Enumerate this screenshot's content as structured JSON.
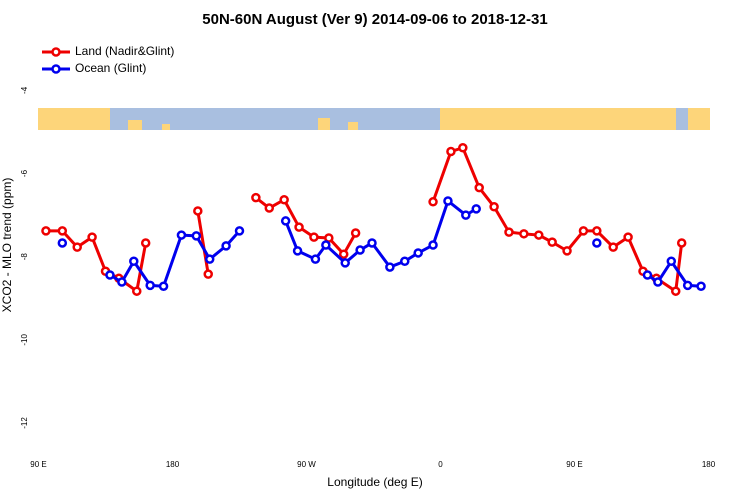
{
  "chart_data": {
    "type": "line",
    "title": "50N-60N August (Ver 9)   2014-09-06 to 2018-12-31",
    "x_label": "Longitude (deg E)",
    "y_label": "XCO2 - MLO trend (ppm)",
    "xlim": [
      -270,
      180
    ],
    "xticks": [
      {
        "value": -270,
        "label": "90 E"
      },
      -180,
      {
        "value": -180,
        "label": "180"
      },
      {
        "value": -90,
        "label": "90 W"
      },
      0,
      {
        "value": 90,
        "label": "90 E"
      },
      180
    ],
    "ylim": [
      -12.77,
      -2.74
    ],
    "yticks": [
      -4,
      -6,
      -8,
      -10,
      -12
    ],
    "grid": false,
    "legend": "top-left",
    "series": [
      {
        "name": "Land (Nadir&Glint)",
        "color": "#ee0000",
        "x": [
          -265,
          -254,
          -244,
          -234,
          -225,
          -216,
          -204,
          -198,
          -187,
          -163,
          -156,
          -144,
          -124,
          -115,
          -105,
          -95,
          -85,
          -75,
          -65,
          -57,
          -34,
          -5,
          7,
          15,
          26,
          36,
          46,
          56,
          66,
          75,
          85,
          96,
          105,
          116,
          126,
          136,
          145,
          158,
          162
        ],
        "values": [
          -7.38,
          -7.38,
          -7.77,
          -7.53,
          -8.35,
          -8.52,
          -8.83,
          -7.67,
          null,
          -6.9,
          -8.42,
          null,
          -6.58,
          -6.83,
          -6.63,
          -7.29,
          -7.53,
          -7.55,
          -7.94,
          -7.43,
          null,
          -6.68,
          -5.47,
          -5.38,
          -6.34,
          -6.8,
          -7.41,
          -7.45,
          -7.48,
          -7.65,
          -7.86,
          -7.38,
          -7.38,
          -7.77,
          -7.53,
          -8.35,
          -8.52,
          -8.83,
          -7.67
        ]
      },
      {
        "name": "Ocean (Glint)",
        "color": "#0000ee",
        "x": [
          -254,
          -234,
          -222,
          -214,
          -206,
          -195,
          -186,
          -174,
          -164,
          -155,
          -144,
          -135,
          -124,
          -104,
          -96,
          -84,
          -77,
          -64,
          -54,
          -46,
          -34,
          -24,
          -15,
          -5,
          5,
          17,
          24,
          56,
          105,
          126,
          139,
          146,
          155,
          166,
          175
        ],
        "values": [
          -7.67,
          null,
          -8.44,
          -8.61,
          -8.11,
          -8.69,
          -8.71,
          -7.48,
          -7.5,
          -8.06,
          -7.74,
          -7.38,
          null,
          -7.14,
          -7.86,
          -8.06,
          -7.72,
          -8.15,
          -7.84,
          -7.67,
          -8.25,
          -8.11,
          -7.91,
          -7.72,
          -6.66,
          -7.0,
          -6.85,
          null,
          -7.67,
          null,
          -8.44,
          -8.61,
          -8.11,
          -8.69,
          -8.71
        ]
      }
    ]
  }
}
